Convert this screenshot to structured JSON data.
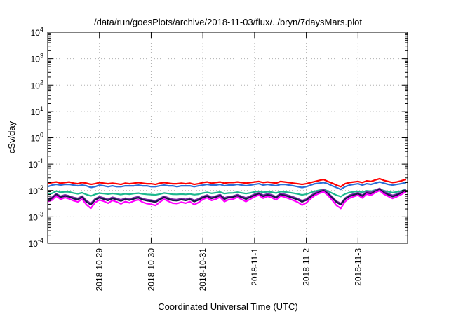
{
  "chart_data": {
    "type": "line",
    "title": "/data/run/goesPlots/archive/2018-11-03/flux/../bryn/7daysMars.plot",
    "xlabel": "Coordinated Universal Time (UTC)",
    "ylabel": "cSv/day",
    "y_scale": "log",
    "ylim": [
      0.0001,
      10000
    ],
    "y_tick_labels": [
      {
        "base": "10",
        "exp": "-4",
        "value": 0.0001
      },
      {
        "base": "10",
        "exp": "-3",
        "value": 0.001
      },
      {
        "base": "10",
        "exp": "-2",
        "value": 0.01
      },
      {
        "base": "10",
        "exp": "-1",
        "value": 0.1
      },
      {
        "base": "10",
        "exp": "0",
        "value": 1
      },
      {
        "base": "10",
        "exp": "1",
        "value": 10
      },
      {
        "base": "10",
        "exp": "2",
        "value": 100
      },
      {
        "base": "10",
        "exp": "3",
        "value": 1000
      },
      {
        "base": "10",
        "exp": "4",
        "value": 10000
      }
    ],
    "x_tick_labels": [
      "2018-10-29",
      "2018-10-30",
      "2018-10-31",
      "2018-11-1",
      "2018-11-2",
      "2018-11-3"
    ],
    "xlim": [
      "2018-10-28T00:00",
      "2018-11-03T23:00"
    ],
    "grid": true,
    "x": [
      "2018-10-28T00:00",
      "2018-10-28T02:00",
      "2018-10-28T04:00",
      "2018-10-28T06:00",
      "2018-10-28T08:00",
      "2018-10-28T10:00",
      "2018-10-28T12:00",
      "2018-10-28T14:00",
      "2018-10-28T16:00",
      "2018-10-28T18:00",
      "2018-10-28T20:00",
      "2018-10-28T22:00",
      "2018-10-29T00:00",
      "2018-10-29T02:00",
      "2018-10-29T04:00",
      "2018-10-29T06:00",
      "2018-10-29T08:00",
      "2018-10-29T10:00",
      "2018-10-29T12:00",
      "2018-10-29T14:00",
      "2018-10-29T16:00",
      "2018-10-29T18:00",
      "2018-10-29T20:00",
      "2018-10-29T22:00",
      "2018-10-30T00:00",
      "2018-10-30T02:00",
      "2018-10-30T04:00",
      "2018-10-30T06:00",
      "2018-10-30T08:00",
      "2018-10-30T10:00",
      "2018-10-30T12:00",
      "2018-10-30T14:00",
      "2018-10-30T16:00",
      "2018-10-30T18:00",
      "2018-10-30T20:00",
      "2018-10-30T22:00",
      "2018-10-31T00:00",
      "2018-10-31T02:00",
      "2018-10-31T04:00",
      "2018-10-31T06:00",
      "2018-10-31T08:00",
      "2018-10-31T10:00",
      "2018-10-31T12:00",
      "2018-10-31T14:00",
      "2018-10-31T16:00",
      "2018-10-31T18:00",
      "2018-10-31T20:00",
      "2018-10-31T22:00",
      "2018-11-01T00:00",
      "2018-11-01T02:00",
      "2018-11-01T04:00",
      "2018-11-01T06:00",
      "2018-11-01T08:00",
      "2018-11-01T10:00",
      "2018-11-01T12:00",
      "2018-11-01T14:00",
      "2018-11-01T16:00",
      "2018-11-01T18:00",
      "2018-11-01T20:00",
      "2018-11-01T22:00",
      "2018-11-02T00:00",
      "2018-11-02T02:00",
      "2018-11-02T04:00",
      "2018-11-02T06:00",
      "2018-11-02T08:00",
      "2018-11-02T10:00",
      "2018-11-02T12:00",
      "2018-11-02T14:00",
      "2018-11-02T16:00",
      "2018-11-02T18:00",
      "2018-11-02T20:00",
      "2018-11-02T22:00",
      "2018-11-03T00:00",
      "2018-11-03T02:00",
      "2018-11-03T04:00",
      "2018-11-03T06:00",
      "2018-11-03T08:00",
      "2018-11-03T10:00",
      "2018-11-03T12:00",
      "2018-11-03T14:00",
      "2018-11-03T16:00",
      "2018-11-03T18:00",
      "2018-11-03T20:00",
      "2018-11-03T22:00"
    ],
    "series": [
      {
        "color": "#ff0000",
        "values": [
          0.018,
          0.02,
          0.021,
          0.019,
          0.02,
          0.021,
          0.019,
          0.018,
          0.02,
          0.019,
          0.017,
          0.018,
          0.02,
          0.019,
          0.018,
          0.019,
          0.018,
          0.017,
          0.019,
          0.018,
          0.019,
          0.02,
          0.019,
          0.018,
          0.018,
          0.017,
          0.019,
          0.02,
          0.019,
          0.018,
          0.018,
          0.019,
          0.018,
          0.019,
          0.017,
          0.018,
          0.02,
          0.021,
          0.019,
          0.02,
          0.021,
          0.019,
          0.02,
          0.02,
          0.021,
          0.02,
          0.019,
          0.02,
          0.021,
          0.022,
          0.02,
          0.021,
          0.02,
          0.019,
          0.022,
          0.021,
          0.02,
          0.019,
          0.018,
          0.017,
          0.018,
          0.02,
          0.022,
          0.024,
          0.026,
          0.022,
          0.019,
          0.016,
          0.014,
          0.018,
          0.02,
          0.021,
          0.022,
          0.02,
          0.023,
          0.022,
          0.025,
          0.028,
          0.024,
          0.022,
          0.02,
          0.021,
          0.023,
          0.026
        ]
      },
      {
        "color": "#2b6fd6",
        "values": [
          0.014,
          0.016,
          0.017,
          0.016,
          0.017,
          0.017,
          0.016,
          0.015,
          0.016,
          0.015,
          0.013,
          0.014,
          0.016,
          0.015,
          0.014,
          0.015,
          0.014,
          0.014,
          0.015,
          0.015,
          0.015,
          0.016,
          0.015,
          0.015,
          0.014,
          0.014,
          0.015,
          0.016,
          0.015,
          0.015,
          0.014,
          0.015,
          0.015,
          0.015,
          0.014,
          0.015,
          0.016,
          0.017,
          0.016,
          0.016,
          0.017,
          0.015,
          0.016,
          0.016,
          0.017,
          0.016,
          0.015,
          0.016,
          0.017,
          0.018,
          0.016,
          0.017,
          0.016,
          0.015,
          0.017,
          0.017,
          0.016,
          0.015,
          0.014,
          0.013,
          0.014,
          0.016,
          0.018,
          0.019,
          0.02,
          0.018,
          0.015,
          0.013,
          0.011,
          0.014,
          0.016,
          0.017,
          0.018,
          0.016,
          0.018,
          0.017,
          0.019,
          0.021,
          0.019,
          0.017,
          0.016,
          0.017,
          0.018,
          0.02
        ]
      },
      {
        "color": "#1db88e",
        "values": [
          0.0072,
          0.0078,
          0.0095,
          0.0085,
          0.009,
          0.0088,
          0.008,
          0.0075,
          0.0082,
          0.007,
          0.0062,
          0.0071,
          0.0079,
          0.0076,
          0.0073,
          0.0077,
          0.0074,
          0.007,
          0.0075,
          0.0072,
          0.0076,
          0.0079,
          0.0074,
          0.0071,
          0.007,
          0.0068,
          0.0073,
          0.008,
          0.0076,
          0.0072,
          0.0071,
          0.0073,
          0.0071,
          0.0074,
          0.0069,
          0.0072,
          0.008,
          0.0085,
          0.0078,
          0.0082,
          0.0087,
          0.0076,
          0.008,
          0.0081,
          0.0086,
          0.0081,
          0.0076,
          0.0081,
          0.0088,
          0.0093,
          0.0085,
          0.009,
          0.0086,
          0.008,
          0.0091,
          0.0088,
          0.0084,
          0.0079,
          0.0074,
          0.0068,
          0.0072,
          0.0083,
          0.0094,
          0.0102,
          0.011,
          0.0095,
          0.0079,
          0.0066,
          0.0059,
          0.0074,
          0.0084,
          0.0089,
          0.0094,
          0.0085,
          0.0097,
          0.0093,
          0.0104,
          0.0115,
          0.0098,
          0.009,
          0.0083,
          0.0088,
          0.0096,
          0.0108
        ]
      },
      {
        "color": "#7b2aa8",
        "values": [
          0.0048,
          0.0055,
          0.0075,
          0.006,
          0.0068,
          0.0062,
          0.0054,
          0.005,
          0.0061,
          0.0041,
          0.0032,
          0.0048,
          0.0058,
          0.0052,
          0.0046,
          0.0055,
          0.005,
          0.0044,
          0.0051,
          0.0047,
          0.0053,
          0.0058,
          0.0049,
          0.0045,
          0.0043,
          0.004,
          0.0049,
          0.006,
          0.0052,
          0.0046,
          0.0045,
          0.0049,
          0.0046,
          0.0051,
          0.0042,
          0.0048,
          0.0059,
          0.0067,
          0.0055,
          0.0061,
          0.007,
          0.0052,
          0.0059,
          0.0061,
          0.0069,
          0.006,
          0.0052,
          0.0061,
          0.0072,
          0.0081,
          0.0066,
          0.0075,
          0.0068,
          0.0058,
          0.0077,
          0.0071,
          0.0064,
          0.0056,
          0.0049,
          0.0041,
          0.0047,
          0.0063,
          0.008,
          0.0094,
          0.0108,
          0.0082,
          0.0057,
          0.0039,
          0.0032,
          0.0051,
          0.0066,
          0.0074,
          0.0082,
          0.0067,
          0.0089,
          0.0082,
          0.0101,
          0.012,
          0.009,
          0.0076,
          0.0065,
          0.0073,
          0.0086,
          0.0106
        ]
      },
      {
        "color": "#181848",
        "values": [
          0.0043,
          0.005,
          0.007,
          0.0055,
          0.0062,
          0.0057,
          0.0049,
          0.0045,
          0.0056,
          0.0037,
          0.0029,
          0.0044,
          0.0053,
          0.0047,
          0.0042,
          0.005,
          0.0045,
          0.004,
          0.0046,
          0.0043,
          0.0048,
          0.0053,
          0.0045,
          0.0041,
          0.0039,
          0.0036,
          0.0045,
          0.0055,
          0.0047,
          0.0042,
          0.0041,
          0.0045,
          0.0042,
          0.0046,
          0.0038,
          0.0044,
          0.0054,
          0.0061,
          0.005,
          0.0056,
          0.0064,
          0.0047,
          0.0054,
          0.0056,
          0.0063,
          0.0055,
          0.0047,
          0.0056,
          0.0066,
          0.0074,
          0.006,
          0.0068,
          0.0062,
          0.0053,
          0.007,
          0.0065,
          0.0058,
          0.0051,
          0.0045,
          0.0037,
          0.0043,
          0.0058,
          0.0073,
          0.0086,
          0.0099,
          0.0075,
          0.0052,
          0.0036,
          0.0029,
          0.0047,
          0.006,
          0.0068,
          0.0075,
          0.0061,
          0.0081,
          0.0075,
          0.0092,
          0.011,
          0.0082,
          0.0069,
          0.0059,
          0.0067,
          0.0079,
          0.0097
        ]
      },
      {
        "color": "#ff00ff",
        "values": [
          0.0038,
          0.0043,
          0.0062,
          0.0046,
          0.0054,
          0.0048,
          0.0041,
          0.0037,
          0.0047,
          0.0029,
          0.0021,
          0.0035,
          0.0044,
          0.0039,
          0.0033,
          0.0042,
          0.0037,
          0.0031,
          0.0038,
          0.0034,
          0.004,
          0.0045,
          0.0036,
          0.0032,
          0.003,
          0.0027,
          0.0036,
          0.0047,
          0.0039,
          0.0033,
          0.0032,
          0.0036,
          0.0033,
          0.0038,
          0.0029,
          0.0035,
          0.0046,
          0.0053,
          0.0042,
          0.0047,
          0.0056,
          0.0038,
          0.0045,
          0.0047,
          0.0055,
          0.0046,
          0.0038,
          0.0047,
          0.0058,
          0.0066,
          0.0051,
          0.006,
          0.0053,
          0.0044,
          0.0062,
          0.0056,
          0.0049,
          0.0042,
          0.0036,
          0.0028,
          0.0034,
          0.0049,
          0.0065,
          0.0078,
          0.009,
          0.0066,
          0.0043,
          0.0027,
          0.0021,
          0.0038,
          0.0051,
          0.0059,
          0.0066,
          0.0052,
          0.0073,
          0.0066,
          0.0083,
          0.01,
          0.0073,
          0.006,
          0.005,
          0.0058,
          0.007,
          0.0088
        ]
      }
    ]
  }
}
